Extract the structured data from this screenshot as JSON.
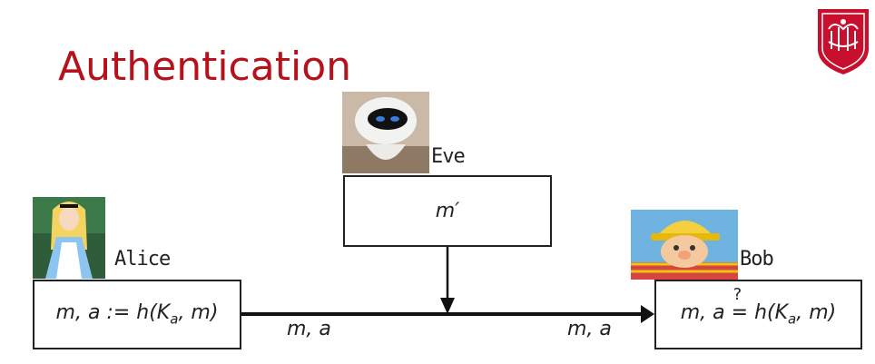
{
  "slide": {
    "title": "Authentication"
  },
  "logo": {
    "icon": "university-shield-logo",
    "color": "#c8102e"
  },
  "eve": {
    "name": "Eve",
    "box_text": "m′"
  },
  "alice": {
    "name": "Alice",
    "box_lhs": "m, a := h(K",
    "box_sub": "a",
    "box_rhs": ", m)"
  },
  "bob": {
    "name": "Bob",
    "box_lhs": "m, a ",
    "box_eq": "=",
    "box_q": "?",
    "box_mid": " h(K",
    "box_sub": "a",
    "box_rhs": ", m)"
  },
  "edges": {
    "left_label": "m, a",
    "right_label": "m, a"
  }
}
